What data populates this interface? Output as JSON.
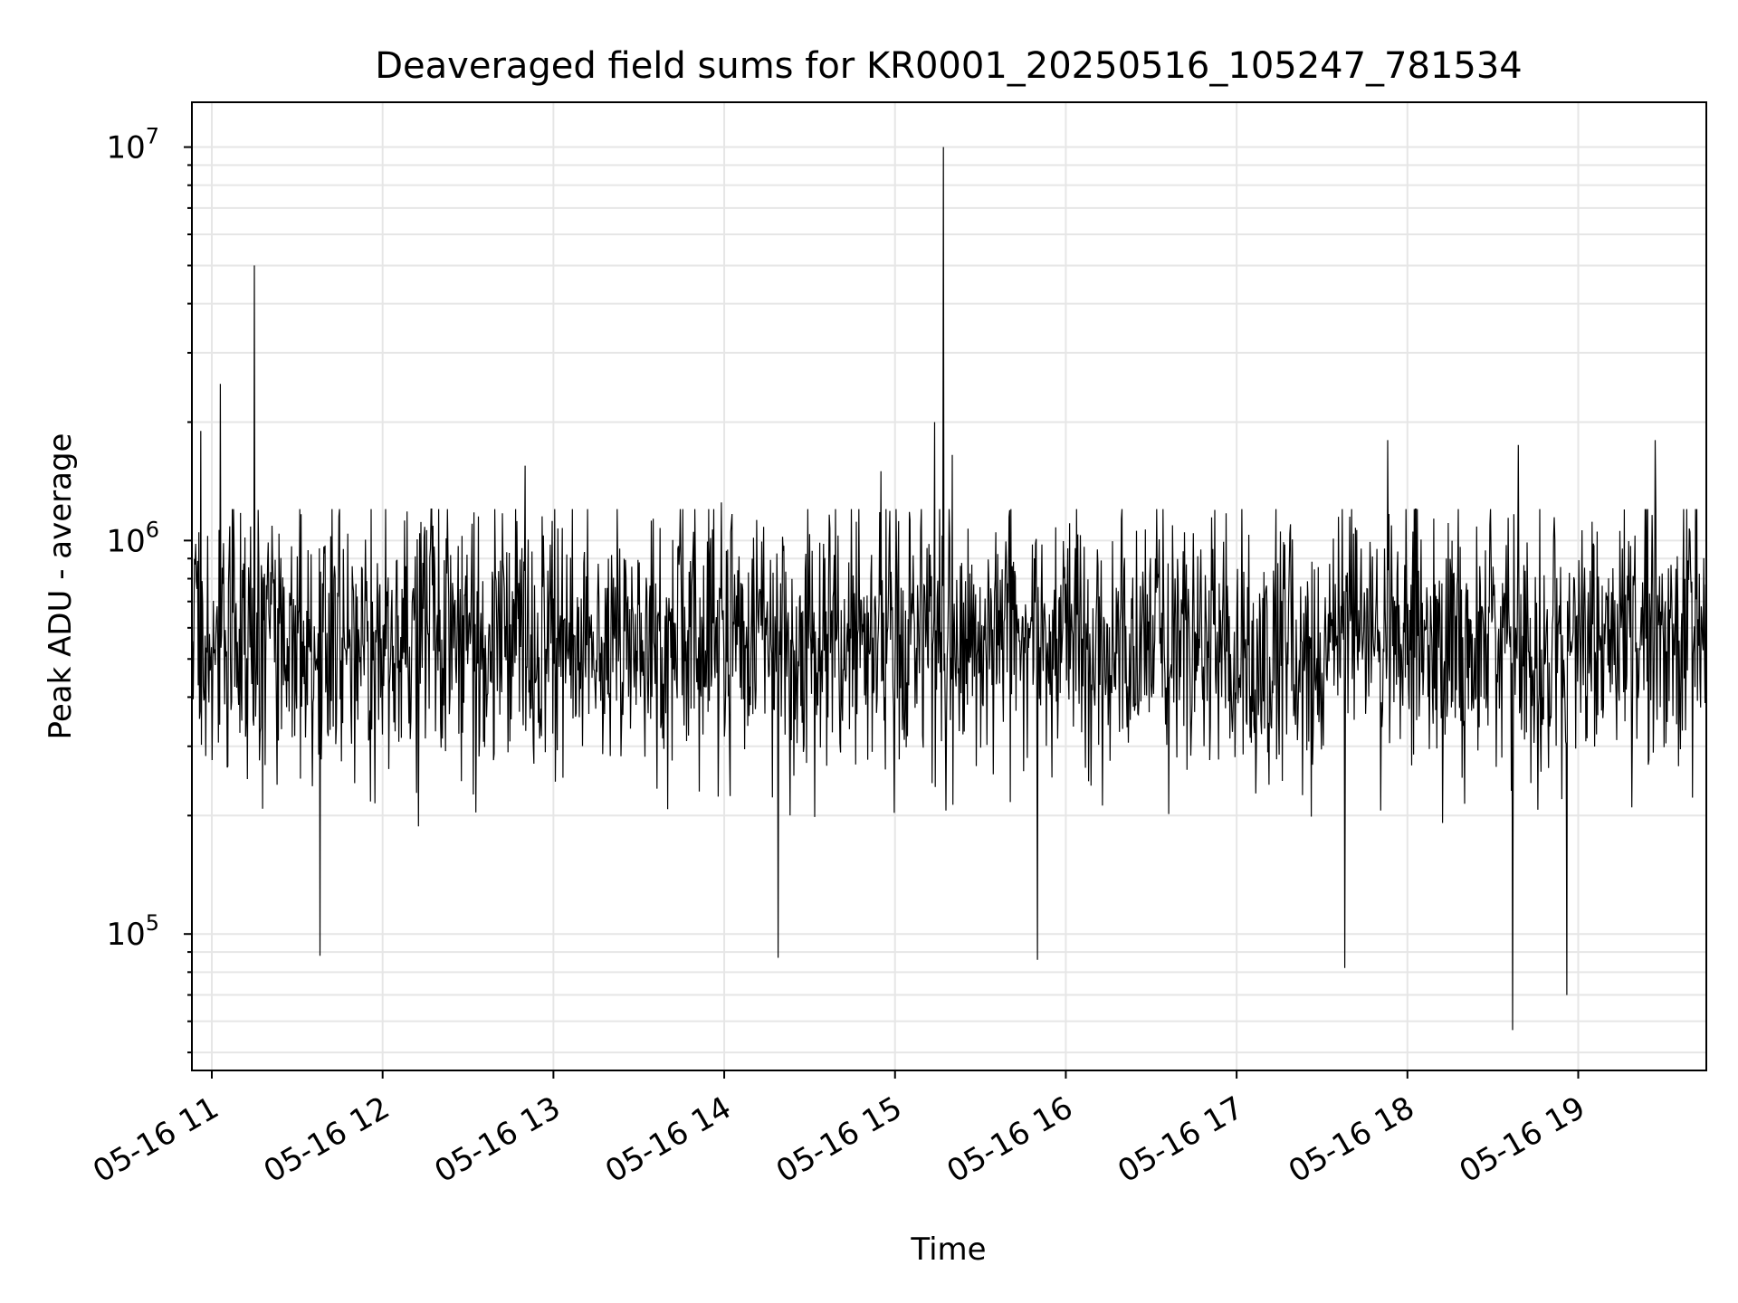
{
  "chart_data": {
    "type": "line",
    "title": "Deaveraged field sums for KR0001_20250516_105247_781534",
    "xlabel": "Time",
    "ylabel": "Peak ADU - average",
    "yscale": "log",
    "ylim": [
      45000,
      13000000
    ],
    "xlim": [
      "2025-05-16T10:53",
      "2025-05-16T19:45"
    ],
    "grid": true,
    "y_ticks": [
      {
        "base": "10",
        "exp": "5",
        "value": 100000
      },
      {
        "base": "10",
        "exp": "6",
        "value": 1000000
      },
      {
        "base": "10",
        "exp": "7",
        "value": 10000000
      }
    ],
    "x_ticks": [
      {
        "label": "05-16 11",
        "time": "2025-05-16T11:00"
      },
      {
        "label": "05-16 12",
        "time": "2025-05-16T12:00"
      },
      {
        "label": "05-16 13",
        "time": "2025-05-16T13:00"
      },
      {
        "label": "05-16 14",
        "time": "2025-05-16T14:00"
      },
      {
        "label": "05-16 15",
        "time": "2025-05-16T15:00"
      },
      {
        "label": "05-16 16",
        "time": "2025-05-16T16:00"
      },
      {
        "label": "05-16 17",
        "time": "2025-05-16T17:00"
      },
      {
        "label": "05-16 18",
        "time": "2025-05-16T18:00"
      },
      {
        "label": "05-16 19",
        "time": "2025-05-16T19:00"
      }
    ],
    "series": [
      {
        "color": "#000000",
        "typical_range": [
          250000,
          1000000
        ],
        "median": 550000,
        "spikes": [
          {
            "time": "2025-05-16T10:56",
            "value": 1900000
          },
          {
            "time": "2025-05-16T11:03",
            "value": 2500000
          },
          {
            "time": "2025-05-16T11:15",
            "value": 5000000
          },
          {
            "time": "2025-05-16T11:38",
            "value": 88000
          },
          {
            "time": "2025-05-16T12:50",
            "value": 1550000
          },
          {
            "time": "2025-05-16T13:59",
            "value": 1250000
          },
          {
            "time": "2025-05-16T14:19",
            "value": 87000
          },
          {
            "time": "2025-05-16T14:55",
            "value": 1500000
          },
          {
            "time": "2025-05-16T15:14",
            "value": 2000000
          },
          {
            "time": "2025-05-16T15:17",
            "value": 10000000
          },
          {
            "time": "2025-05-16T15:20",
            "value": 1650000
          },
          {
            "time": "2025-05-16T15:50",
            "value": 86000
          },
          {
            "time": "2025-05-16T17:38",
            "value": 82000
          },
          {
            "time": "2025-05-16T17:53",
            "value": 1800000
          },
          {
            "time": "2025-05-16T18:37",
            "value": 57000
          },
          {
            "time": "2025-05-16T18:39",
            "value": 1750000
          },
          {
            "time": "2025-05-16T18:56",
            "value": 70000
          },
          {
            "time": "2025-05-16T19:27",
            "value": 1800000
          }
        ]
      }
    ]
  }
}
